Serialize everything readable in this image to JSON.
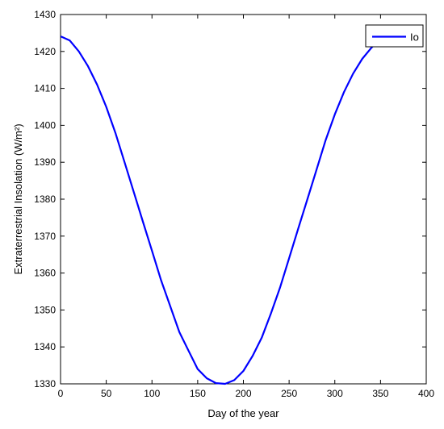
{
  "chart_data": {
    "type": "line",
    "title": "",
    "xlabel": "Day of the year",
    "ylabel": "Extraterrestrial Insolation (W/m²)",
    "xlim": [
      0,
      400
    ],
    "ylim": [
      1330,
      1430
    ],
    "xticks": [
      0,
      50,
      100,
      150,
      200,
      250,
      300,
      350,
      400
    ],
    "yticks": [
      1330,
      1340,
      1350,
      1360,
      1370,
      1380,
      1390,
      1400,
      1410,
      1420,
      1430
    ],
    "grid": false,
    "legend": {
      "position": "top-right",
      "entries": [
        "Io"
      ]
    },
    "series": [
      {
        "name": "Io",
        "color": "#0000ff",
        "x": [
          1,
          10,
          20,
          30,
          40,
          50,
          60,
          70,
          80,
          90,
          100,
          110,
          120,
          130,
          140,
          150,
          160,
          170,
          180,
          190,
          200,
          210,
          220,
          230,
          240,
          250,
          260,
          270,
          280,
          290,
          300,
          310,
          320,
          330,
          340,
          350,
          360,
          365
        ],
        "y": [
          1424,
          1423,
          1420,
          1416,
          1411,
          1405,
          1398,
          1390,
          1382,
          1374,
          1366,
          1358,
          1351,
          1344,
          1339,
          1334,
          1331.5,
          1330.2,
          1330,
          1331,
          1333.5,
          1337.5,
          1342.5,
          1349,
          1356,
          1364,
          1372,
          1380,
          1388,
          1396,
          1403,
          1409,
          1414,
          1418,
          1421,
          1423.5,
          1424.5,
          1424.8
        ]
      }
    ]
  }
}
